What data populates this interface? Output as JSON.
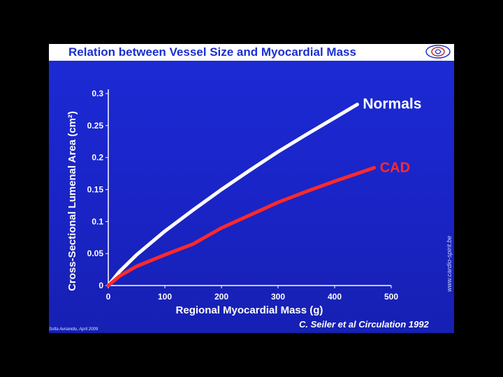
{
  "slide": {
    "title": "Relation between Vessel Size and Myocardial Mass",
    "credit": "C. Seiler et al Circulation 1992",
    "footnote": "Sofia Avrianidu, April 2009",
    "side_url": "www.cardio-spirit.be"
  },
  "chart_data": {
    "type": "line",
    "title": "Relation between Vessel Size and Myocardial Mass",
    "xlabel": "Regional Myocardial Mass (g)",
    "ylabel": "Cross-Sectional Lumenal Area (cm²)",
    "x_ticks": [
      "0",
      "100",
      "200",
      "300",
      "400",
      "500"
    ],
    "y_ticks": [
      "0",
      "0.05",
      "0.1",
      "0.15",
      "0.2",
      "0.25",
      "0.3"
    ],
    "xlim": [
      0,
      500
    ],
    "ylim": [
      0,
      0.3
    ],
    "grid": false,
    "series": [
      {
        "name": "Normals",
        "color": "#ffffff",
        "points": [
          [
            0,
            0
          ],
          [
            20,
            0.022
          ],
          [
            50,
            0.048
          ],
          [
            100,
            0.085
          ],
          [
            150,
            0.118
          ],
          [
            200,
            0.15
          ],
          [
            250,
            0.18
          ],
          [
            300,
            0.209
          ],
          [
            350,
            0.236
          ],
          [
            400,
            0.262
          ],
          [
            440,
            0.283
          ]
        ]
      },
      {
        "name": "CAD",
        "color": "#ff2a2a",
        "points": [
          [
            0,
            0
          ],
          [
            20,
            0.015
          ],
          [
            50,
            0.03
          ],
          [
            100,
            0.048
          ],
          [
            150,
            0.065
          ],
          [
            200,
            0.09
          ],
          [
            250,
            0.11
          ],
          [
            300,
            0.13
          ],
          [
            350,
            0.147
          ],
          [
            400,
            0.163
          ],
          [
            470,
            0.184
          ]
        ]
      }
    ]
  }
}
